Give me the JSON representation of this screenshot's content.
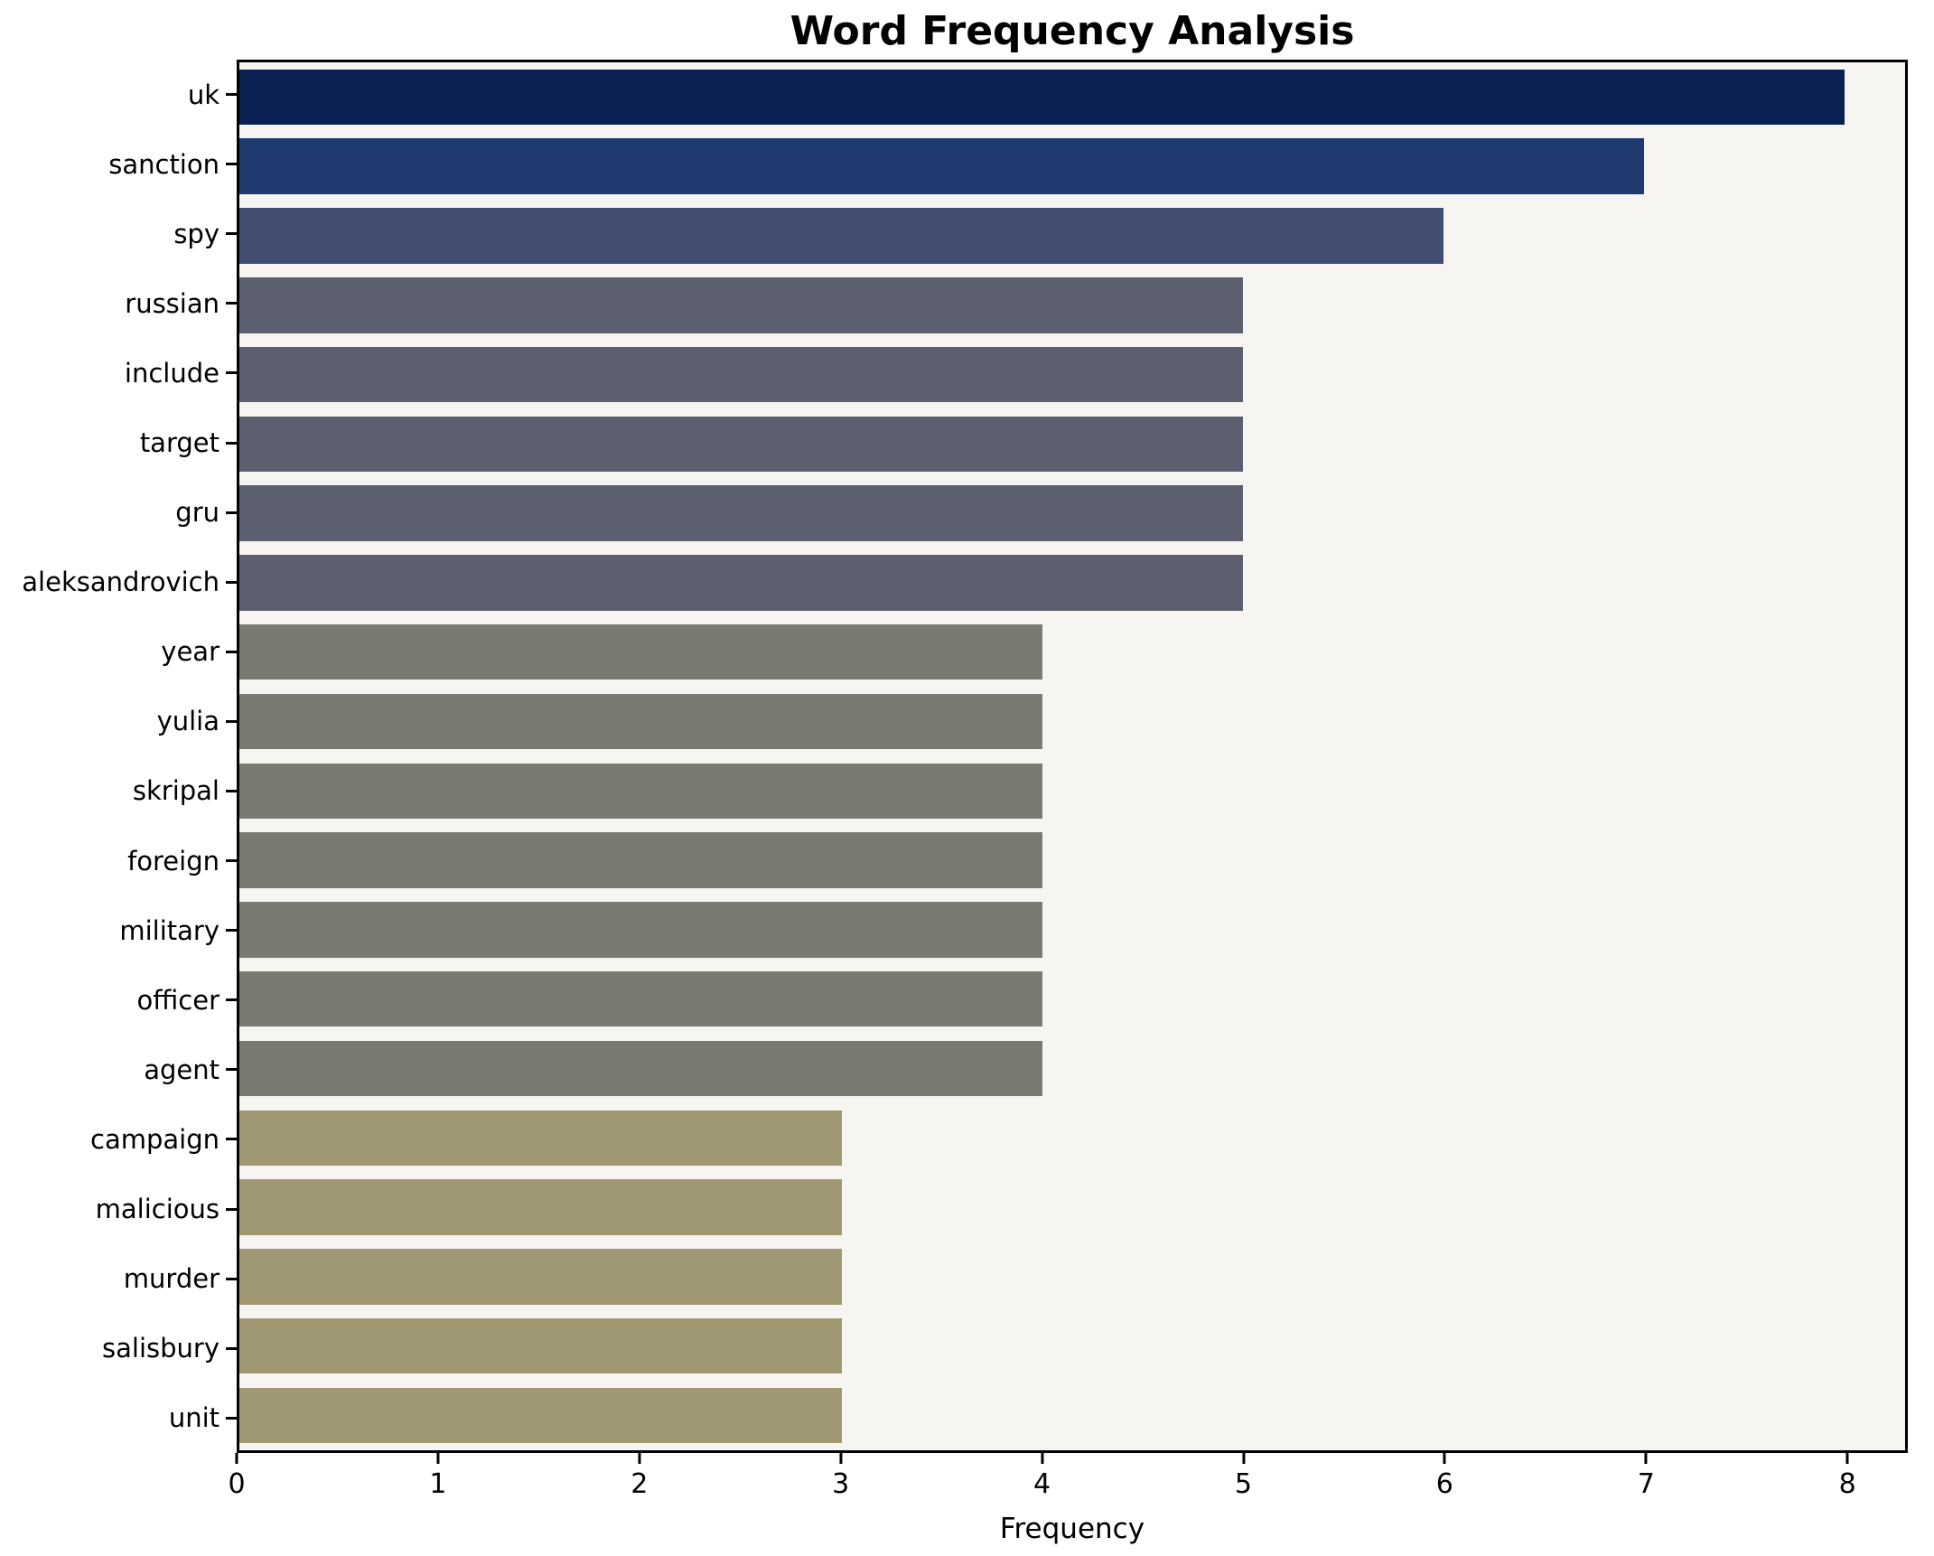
{
  "title": "Word Frequency Analysis",
  "xlabel": "Frequency",
  "chart_data": {
    "type": "bar",
    "orientation": "horizontal",
    "title": "Word Frequency Analysis",
    "xlabel": "Frequency",
    "ylabel": "",
    "categories": [
      "uk",
      "sanction",
      "spy",
      "russian",
      "include",
      "target",
      "gru",
      "aleksandrovich",
      "year",
      "yulia",
      "skripal",
      "foreign",
      "military",
      "officer",
      "agent",
      "campaign",
      "malicious",
      "murder",
      "salisbury",
      "unit"
    ],
    "values": [
      8,
      7,
      6,
      5,
      5,
      5,
      5,
      5,
      4,
      4,
      4,
      4,
      4,
      4,
      4,
      3,
      3,
      3,
      3,
      3
    ],
    "bar_colors": [
      "#0a2151",
      "#1e3a6e",
      "#424e71",
      "#5b5f6e",
      "#5b5f6e",
      "#5b5f6e",
      "#5b5f6e",
      "#5b5f6e",
      "#7b7a72",
      "#7b7a72",
      "#7b7a72",
      "#7b7a72",
      "#7b7a72",
      "#7b7a72",
      "#7b7a72",
      "#a09873",
      "#a09873",
      "#a09873",
      "#a09873",
      "#a09873"
    ],
    "x_ticks": [
      0,
      1,
      2,
      3,
      4,
      5,
      6,
      7,
      8
    ],
    "xlim": [
      0,
      8.3
    ],
    "grid": false,
    "legend": false,
    "plot_background": "#f6f5f2",
    "spine_color": "#000000",
    "bar_height_ratio": 0.8
  }
}
